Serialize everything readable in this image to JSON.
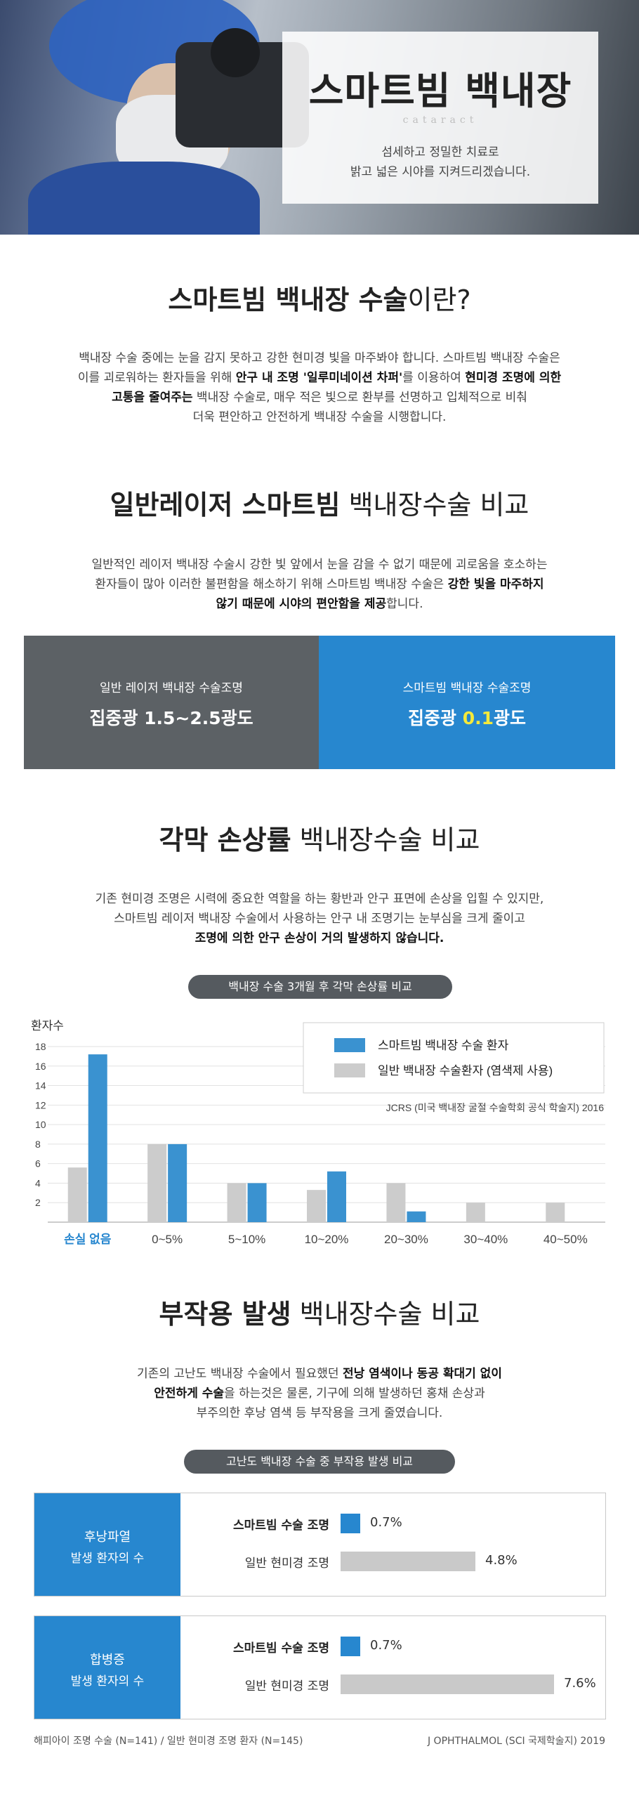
{
  "hero": {
    "title": "스마트빔 백내장",
    "tag": "cataract",
    "subtitle_line1": "섬세하고 정밀한 치료로",
    "subtitle_line2": "밝고 넓은 시야를 지켜드리겠습니다."
  },
  "intro": {
    "heading_bold": "스마트빔 백내장 수술",
    "heading_rest": "이란?",
    "p1": "백내장 수술 중에는 눈을 감지 못하고 강한 현미경 빛을 마주봐야 합니다. 스마트빔 백내장 수술은",
    "p2_a": "이를 괴로워하는 환자들을 위해 ",
    "p2_b": "안구 내 조명 '일루미네이션 차퍼'",
    "p2_c": "를 이용하여 ",
    "p2_d": "현미경 조명에 의한",
    "p3_a": "고통을 줄여주는",
    "p3_b": " 백내장 수술로, 매우 적은 빛으로 환부를 선명하고 입체적으로 비춰",
    "p4": "더욱 편안하고 안전하게 백내장 수술을 시행합니다."
  },
  "compare": {
    "heading_bold": "일반레이저 스마트빔",
    "heading_rest": " 백내장수술 비교",
    "p1": "일반적인 레이저 백내장 수술시 강한 빛 앞에서 눈을 감을 수 없기 때문에 괴로움을 호소하는",
    "p2_a": "환자들이 많아 이러한 불편함을 해소하기 위해 스마트빔 백내장 수술은 ",
    "p2_b": "강한 빛을 마주하지",
    "p3_a": "않기 때문에 시야의 편안함을 제공",
    "p3_b": "합니다.",
    "left_label": "일반 레이저 백내장 수술조명",
    "left_value": "집중광 1.5~2.5광도",
    "right_label": "스마트빔 백내장 수술조명",
    "right_value_a": "집중광 ",
    "right_value_b": "0.1",
    "right_value_c": "광도",
    "colors": {
      "left": "#5c6165",
      "right": "#2787cf",
      "highlight": "#f5e93a"
    }
  },
  "cornea": {
    "heading_bold": "각막 손상률",
    "heading_rest": " 백내장수술 비교",
    "p1": "기존 현미경 조명은 시력에 중요한 역할을 하는 황반과 안구 표면에 손상을 입힐 수 있지만,",
    "p2": "스마트빔 레이저 백내장 수술에서 사용하는 안구 내 조명기는 눈부심을 크게 줄이고",
    "p3": "조명에 의한 안구 손상이 거의 발생하지 않습니다.",
    "pill": "백내장 수술 3개월 후 각막 손상률 비교"
  },
  "chart_data": {
    "type": "bar",
    "ylabel": "환자수",
    "ylim": [
      0,
      18
    ],
    "yticks": [
      "18",
      "16",
      "14",
      "12",
      "10",
      "8",
      "6",
      "4",
      "2"
    ],
    "categories": [
      "손실 없음",
      "0~5%",
      "5~10%",
      "10~20%",
      "20~30%",
      "30~40%",
      "40~50%"
    ],
    "series": [
      {
        "name": "스마트빔 백내장 수술 환자",
        "color": "#3a92d0",
        "values": [
          17.2,
          8,
          4,
          5.2,
          1.1,
          0,
          0
        ]
      },
      {
        "name": "일반 백내장 수술환자 (염색제 사용)",
        "color": "#cccccc",
        "values": [
          5.6,
          8,
          4,
          3.3,
          4,
          2,
          2
        ]
      }
    ],
    "source": "JCRS (미국 백내장 굴절 수술학회 공식 학술지) 2016",
    "grid": true,
    "legend": "top-right"
  },
  "side": {
    "heading_bold": "부작용 발생",
    "heading_rest": " 백내장수술 비교",
    "p1_a": "기존의 고난도 백내장 수술에서 필요했던 ",
    "p1_b": "전낭 염색이나 동공 확대기 없이",
    "p2_a": "안전하게 수술",
    "p2_b": "을 하는것은 물론, 기구에 의해 발생하던 홍채 손상과",
    "p3": "부주의한 후낭 염색 등 부작용을 크게 줄였습니다.",
    "pill": "고난도 백내장 수술 중 부작용 발생 비교",
    "rows": [
      {
        "label1": "후낭파열",
        "label2": "발생 환자의 수",
        "a_name": "스마트빔 수술 조명",
        "a_pct": "0.7%",
        "a_value": 0.7,
        "b_name": "일반 현미경 조명",
        "b_pct": "4.8%",
        "b_value": 4.8
      },
      {
        "label1": "합병증",
        "label2": "발생 환자의 수",
        "a_name": "스마트빔 수술 조명",
        "a_pct": "0.7%",
        "a_value": 0.7,
        "b_name": "일반 현미경 조명",
        "b_pct": "7.6%",
        "b_value": 7.6
      }
    ],
    "foot_left": "해피아이 조명 수술 (N=141) / 일반 현미경 조명 환자 (N=145)",
    "foot_right": "J OPHTHALMOL (SCI 국제학술지) 2019"
  }
}
